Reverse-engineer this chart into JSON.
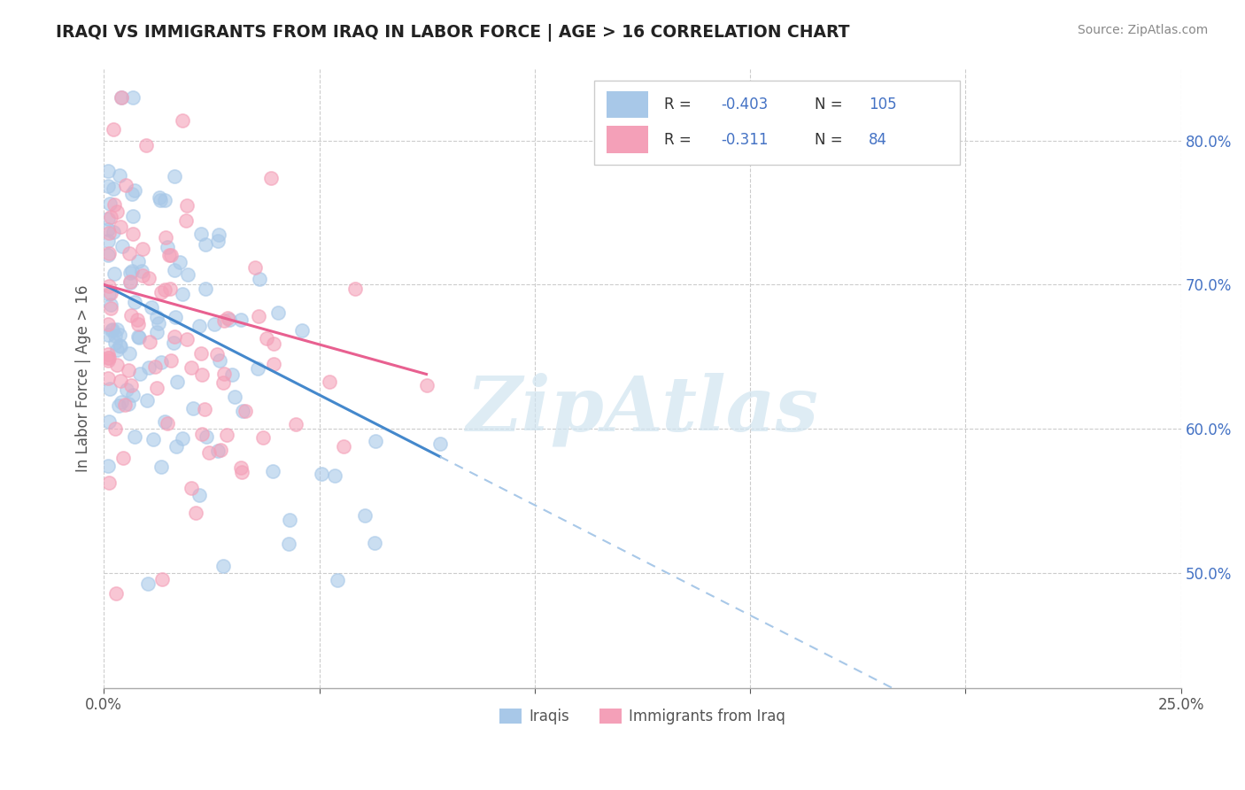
{
  "title": "IRAQI VS IMMIGRANTS FROM IRAQ IN LABOR FORCE | AGE > 16 CORRELATION CHART",
  "source_text": "Source: ZipAtlas.com",
  "ylabel": "In Labor Force | Age > 16",
  "xlim": [
    0.0,
    0.25
  ],
  "ylim": [
    0.42,
    0.85
  ],
  "x_tick_positions": [
    0.0,
    0.05,
    0.1,
    0.15,
    0.2,
    0.25
  ],
  "x_tick_labels": [
    "0.0%",
    "",
    "",
    "",
    "",
    "25.0%"
  ],
  "y_tick_positions": [
    0.5,
    0.6,
    0.7,
    0.8
  ],
  "y_tick_labels": [
    "50.0%",
    "60.0%",
    "70.0%",
    "80.0%"
  ],
  "color_iraqi": "#a8c8e8",
  "color_immigrant": "#f4a0b8",
  "color_line_iraqi": "#4488cc",
  "color_line_immigrant": "#e86090",
  "color_dashed_ext": "#a8c8e8",
  "watermark": "ZipAtlas",
  "watermark_color": "#d0e4f0",
  "r1": "-0.403",
  "n1": "105",
  "r2": "-0.311",
  "n2": "84",
  "legend_color": "#4472c4",
  "grid_color": "#cccccc",
  "title_color": "#222222",
  "source_color": "#888888",
  "tick_color": "#555555",
  "ylabel_color": "#555555"
}
